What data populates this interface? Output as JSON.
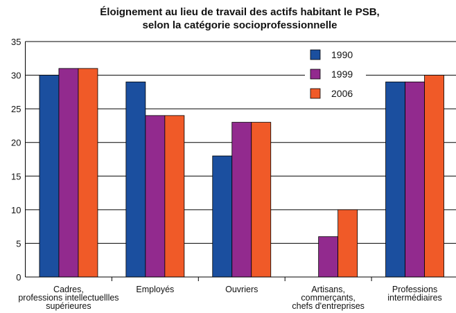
{
  "chart_data": {
    "type": "bar",
    "title": "Éloignement au lieu de travail des actifs habitant le PSB,\nselon la catégorie socioprofessionnelle",
    "categories": [
      "Cadres,\nprofessions intellectuellles\nsupérieures",
      "Employés",
      "Ouvriers",
      "Artisans,\ncommerçants,\nchefs d'entreprises",
      "Professions\nintermédiaires"
    ],
    "series": [
      {
        "name": "1990",
        "color": "#1b4f9f",
        "values": [
          30,
          29,
          18,
          null,
          29
        ]
      },
      {
        "name": "1999",
        "color": "#922a8e",
        "values": [
          31,
          24,
          23,
          6,
          29
        ]
      },
      {
        "name": "2006",
        "color": "#f05a28",
        "values": [
          31,
          24,
          23,
          10,
          30
        ]
      }
    ],
    "ylim": [
      0,
      35
    ],
    "yticks": [
      0,
      5,
      10,
      15,
      20,
      25,
      30,
      35
    ],
    "grid": true,
    "legend": "top-right"
  }
}
